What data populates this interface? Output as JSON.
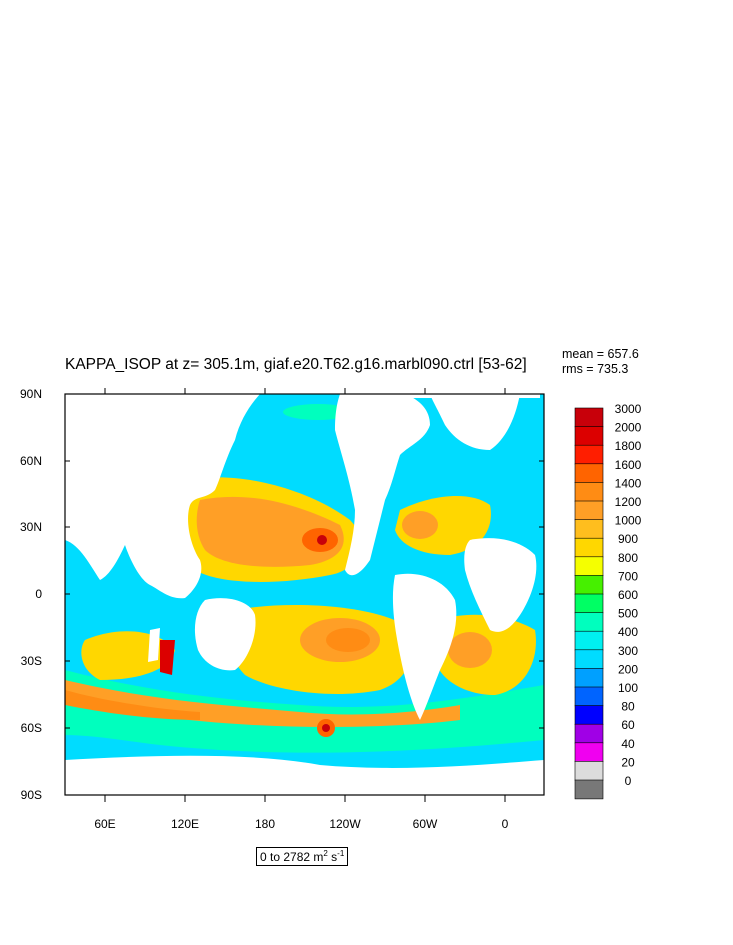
{
  "title": "KAPPA_ISOP at z= 305.1m, giaf.e20.T62.g16.marbl090.ctrl [53-62]",
  "stats": {
    "mean": "mean = 657.6",
    "rms": "rms = 735.3"
  },
  "axes": {
    "y_ticks": [
      "90N",
      "60N",
      "30N",
      "0",
      "30S",
      "60S",
      "90S"
    ],
    "x_ticks": [
      "60E",
      "120E",
      "180",
      "120W",
      "60W",
      "0"
    ]
  },
  "colorbar": {
    "labels": [
      "3000",
      "2000",
      "1800",
      "1600",
      "1400",
      "1200",
      "1000",
      "900",
      "800",
      "700",
      "600",
      "500",
      "400",
      "300",
      "200",
      "100",
      "80",
      "60",
      "40",
      "20",
      "0"
    ],
    "colors": [
      "#c8000a",
      "#dc0000",
      "#ff1e00",
      "#ff6400",
      "#ff8c14",
      "#ff9f26",
      "#ffbe1e",
      "#ffd700",
      "#f5ff00",
      "#46f000",
      "#00ff64",
      "#00ffbe",
      "#00f0f0",
      "#00dcff",
      "#00a0ff",
      "#0064ff",
      "#0000ff",
      "#a000e6",
      "#f000f0",
      "#dcdcdc",
      "#787878"
    ]
  },
  "range": {
    "text": "0 to 2782 m",
    "sup1": "2",
    "mid": " s",
    "sup2": "-1"
  }
}
